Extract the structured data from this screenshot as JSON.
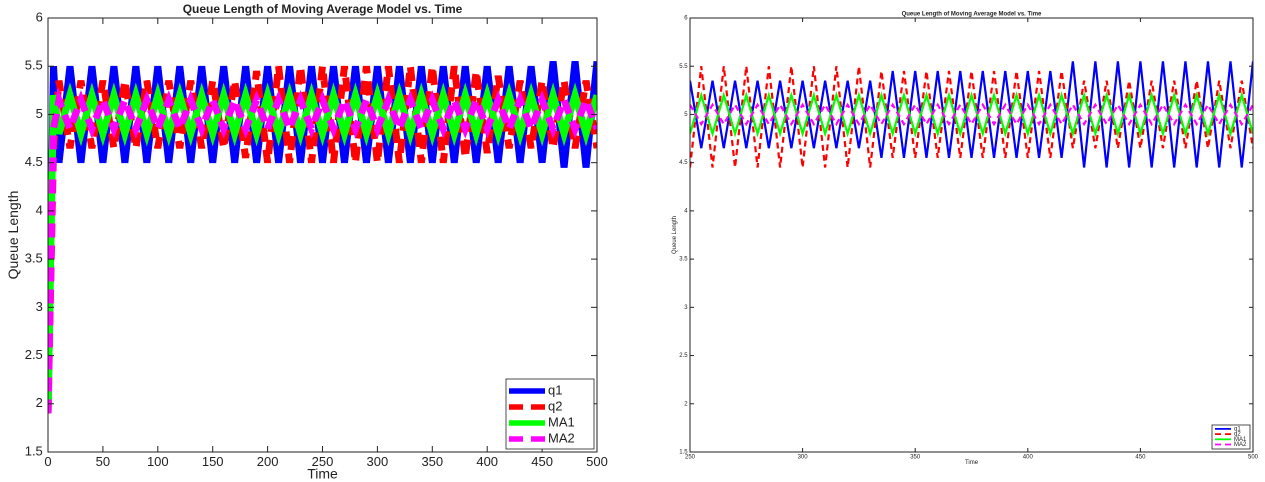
{
  "chart_data": [
    {
      "type": "line",
      "title": "Queue Length of Moving Average Model vs. Time",
      "x_label": "Time",
      "y_label": "Queue Length",
      "x": [
        0,
        5,
        10,
        20,
        30,
        40,
        50,
        60,
        70,
        80,
        90,
        100,
        110,
        120,
        130,
        140,
        150,
        160,
        170,
        180,
        190,
        200,
        210,
        220,
        230,
        240,
        250,
        260,
        270,
        280,
        290,
        300,
        310,
        320,
        330,
        340,
        350,
        360,
        370,
        380,
        390,
        400,
        410,
        420,
        430,
        440,
        450,
        460,
        470,
        480,
        490,
        500
      ],
      "xlim": [
        0,
        500
      ],
      "xticks": [
        0,
        50,
        100,
        150,
        200,
        250,
        300,
        350,
        400,
        450,
        500
      ],
      "ylim": [
        1.5,
        6
      ],
      "yticks": [
        1.5,
        2,
        2.5,
        3,
        3.5,
        4,
        4.5,
        5,
        5.5,
        6
      ],
      "grid": false,
      "legend": "southeast",
      "series": [
        {
          "name": "q1",
          "color": "#0000ff",
          "style": "solid",
          "values": [
            1.9,
            5.5,
            4.5,
            5.5,
            4.5,
            5.5,
            4.5,
            5.5,
            4.5,
            5.5,
            4.5,
            5.5,
            4.5,
            5.5,
            4.5,
            5.5,
            4.5,
            5.5,
            4.5,
            5.5,
            4.5,
            5.5,
            4.5,
            5.5,
            4.5,
            5.5,
            4.5,
            5.5,
            4.5,
            5.5,
            4.5,
            5.5,
            4.5,
            5.5,
            4.5,
            5.5,
            4.5,
            5.5,
            4.5,
            5.5,
            4.5,
            5.5,
            4.5,
            5.5,
            4.5,
            5.5,
            4.5,
            5.55,
            4.45,
            5.55,
            4.45,
            5.55
          ]
        },
        {
          "name": "q2",
          "color": "#ff0000",
          "style": "dashed",
          "values": [
            1.9,
            4.65,
            5.35,
            4.65,
            5.35,
            4.65,
            5.35,
            4.65,
            5.35,
            4.65,
            5.35,
            4.65,
            5.35,
            4.65,
            5.35,
            4.65,
            5.35,
            4.65,
            5.35,
            4.55,
            5.45,
            4.5,
            5.5,
            4.5,
            5.5,
            4.5,
            5.5,
            4.5,
            5.5,
            4.5,
            5.5,
            4.5,
            5.5,
            4.5,
            5.5,
            4.5,
            5.5,
            4.5,
            5.5,
            4.55,
            5.45,
            4.6,
            5.4,
            4.65,
            5.35,
            4.65,
            5.35,
            4.65,
            5.35,
            4.65,
            5.35,
            4.65
          ]
        },
        {
          "name": "MA1",
          "color": "#00ff00",
          "style": "solid",
          "values": [
            1.9,
            5.2,
            4.8,
            5.2,
            4.8,
            5.2,
            4.8,
            5.2,
            4.8,
            5.2,
            4.8,
            5.2,
            4.8,
            5.2,
            4.8,
            5.2,
            4.8,
            5.2,
            4.8,
            5.2,
            4.8,
            5.2,
            4.8,
            5.2,
            4.8,
            5.2,
            4.8,
            5.2,
            4.8,
            5.2,
            4.8,
            5.2,
            4.8,
            5.2,
            4.8,
            5.2,
            4.8,
            5.2,
            4.8,
            5.2,
            4.8,
            5.2,
            4.8,
            5.2,
            4.8,
            5.2,
            4.8,
            5.2,
            4.8,
            5.2,
            4.8,
            5.2
          ]
        },
        {
          "name": "MA2",
          "color": "#ff00ff",
          "style": "dashed",
          "values": [
            1.9,
            4.85,
            5.15,
            4.85,
            5.15,
            4.85,
            5.15,
            4.85,
            5.15,
            4.85,
            5.15,
            4.85,
            5.15,
            4.85,
            5.15,
            4.85,
            5.15,
            4.85,
            5.15,
            4.85,
            5.15,
            4.85,
            5.15,
            4.85,
            5.15,
            4.85,
            5.15,
            4.85,
            5.15,
            4.85,
            5.15,
            4.85,
            5.15,
            4.85,
            5.15,
            4.85,
            5.15,
            4.85,
            5.15,
            4.85,
            5.15,
            4.85,
            5.15,
            4.85,
            5.15,
            4.85,
            5.15,
            4.85,
            5.15,
            4.85,
            5.15,
            4.85
          ]
        }
      ]
    },
    {
      "type": "line",
      "title": "Queue Length of Moving Average Model vs. Time",
      "x_label": "Time",
      "y_label": "Queue Length",
      "x": [
        250,
        255,
        260,
        265,
        270,
        275,
        280,
        285,
        290,
        295,
        300,
        305,
        310,
        315,
        320,
        325,
        330,
        335,
        340,
        345,
        350,
        355,
        360,
        365,
        370,
        375,
        380,
        385,
        390,
        395,
        400,
        405,
        410,
        415,
        420,
        425,
        430,
        435,
        440,
        445,
        450,
        455,
        460,
        465,
        470,
        475,
        480,
        485,
        490,
        495,
        500
      ],
      "xlim": [
        250,
        500
      ],
      "xticks": [
        250,
        300,
        350,
        400,
        450,
        500
      ],
      "ylim": [
        1.5,
        6
      ],
      "yticks": [
        1.5,
        2,
        2.5,
        3,
        3.5,
        4,
        4.5,
        5,
        5.5,
        6
      ],
      "grid": false,
      "legend": "southeast",
      "series": [
        {
          "name": "q1",
          "color": "#0000ff",
          "style": "solid",
          "values": [
            5.35,
            4.65,
            5.35,
            4.65,
            5.35,
            4.65,
            5.35,
            4.65,
            5.35,
            4.65,
            5.35,
            4.65,
            5.35,
            4.65,
            5.35,
            4.65,
            5.35,
            4.55,
            5.45,
            4.55,
            5.45,
            4.55,
            5.45,
            4.55,
            5.45,
            4.55,
            5.45,
            4.55,
            5.45,
            4.55,
            5.45,
            4.55,
            5.45,
            4.55,
            5.55,
            4.45,
            5.55,
            4.45,
            5.55,
            4.45,
            5.55,
            4.45,
            5.55,
            4.45,
            5.55,
            4.45,
            5.55,
            4.45,
            5.55,
            4.45,
            5.55
          ]
        },
        {
          "name": "q2",
          "color": "#ff0000",
          "style": "dashed",
          "values": [
            4.45,
            5.5,
            4.45,
            5.5,
            4.45,
            5.5,
            4.45,
            5.5,
            4.45,
            5.5,
            4.45,
            5.5,
            4.45,
            5.5,
            4.45,
            5.5,
            4.45,
            5.45,
            4.55,
            5.45,
            4.55,
            5.45,
            4.55,
            5.45,
            4.55,
            5.45,
            4.55,
            5.45,
            4.55,
            5.45,
            4.55,
            5.45,
            4.55,
            5.45,
            4.65,
            5.35,
            4.65,
            5.35,
            4.65,
            5.35,
            4.65,
            5.35,
            4.65,
            5.35,
            4.65,
            5.35,
            4.65,
            5.35,
            4.65,
            5.35,
            4.65
          ]
        },
        {
          "name": "MA1",
          "color": "#00ff00",
          "style": "solid",
          "values": [
            4.8,
            5.2,
            4.8,
            5.2,
            4.8,
            5.2,
            4.8,
            5.2,
            4.8,
            5.2,
            4.8,
            5.2,
            4.8,
            5.2,
            4.8,
            5.2,
            4.8,
            5.2,
            4.8,
            5.2,
            4.8,
            5.2,
            4.8,
            5.2,
            4.8,
            5.2,
            4.8,
            5.2,
            4.8,
            5.2,
            4.8,
            5.2,
            4.8,
            5.2,
            4.8,
            5.2,
            4.8,
            5.2,
            4.8,
            5.2,
            4.8,
            5.2,
            4.8,
            5.2,
            4.8,
            5.2,
            4.8,
            5.2,
            4.8,
            5.2,
            4.8
          ]
        },
        {
          "name": "MA2",
          "color": "#ff00ff",
          "style": "dashed",
          "values": [
            5.1,
            4.9,
            5.1,
            4.9,
            5.1,
            4.9,
            5.1,
            4.9,
            5.1,
            4.9,
            5.1,
            4.9,
            5.1,
            4.9,
            5.1,
            4.9,
            5.1,
            4.9,
            5.1,
            4.9,
            5.1,
            4.9,
            5.1,
            4.9,
            5.1,
            4.9,
            5.1,
            4.9,
            5.1,
            4.9,
            5.1,
            4.9,
            5.1,
            4.9,
            5.1,
            4.9,
            5.1,
            4.9,
            5.1,
            4.9,
            5.1,
            4.9,
            5.1,
            4.9,
            5.1,
            4.9,
            5.1,
            4.9,
            5.1,
            4.9,
            5.1
          ]
        }
      ]
    }
  ]
}
